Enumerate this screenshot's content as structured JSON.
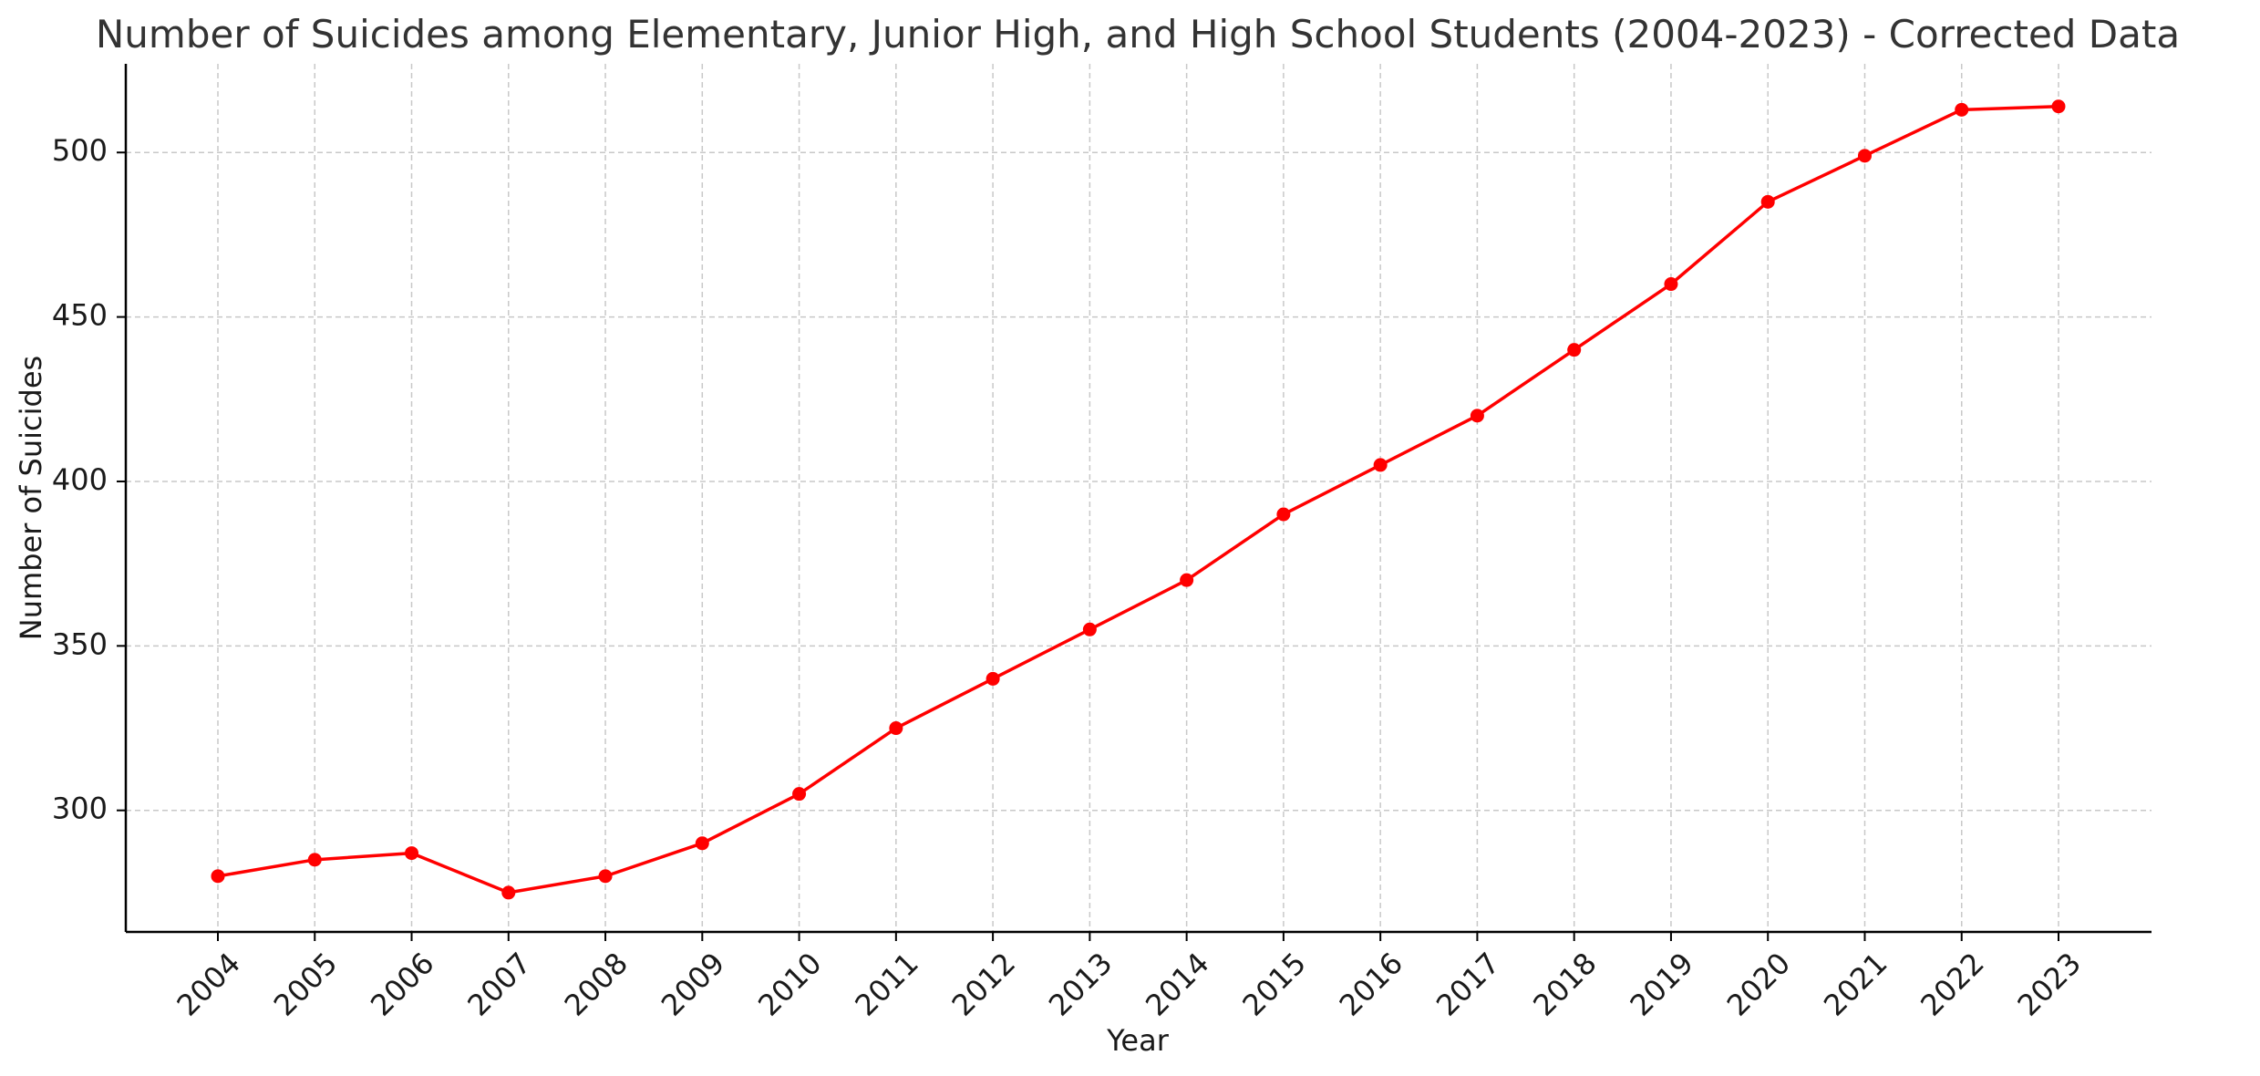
{
  "chart_data": {
    "type": "line",
    "title": "Number of Suicides among Elementary, Junior High, and High School Students (2004-2023) - Corrected Data",
    "xlabel": "Year",
    "ylabel": "Number of Suicides",
    "x": [
      "2004",
      "2005",
      "2006",
      "2007",
      "2008",
      "2009",
      "2010",
      "2011",
      "2012",
      "2013",
      "2014",
      "2015",
      "2016",
      "2017",
      "2018",
      "2019",
      "2020",
      "2021",
      "2022",
      "2023"
    ],
    "series": [
      {
        "values": [
          280,
          285,
          287,
          275,
          280,
          290,
          305,
          325,
          340,
          355,
          370,
          390,
          405,
          420,
          440,
          460,
          485,
          499,
          513,
          514
        ],
        "color": "#ff0000",
        "marker": "circle"
      }
    ],
    "yticks": [
      300,
      350,
      400,
      450,
      500
    ],
    "ylim": [
      263.05,
      526.95
    ],
    "grid": true,
    "grid_style": "dashed",
    "legend": "none"
  }
}
